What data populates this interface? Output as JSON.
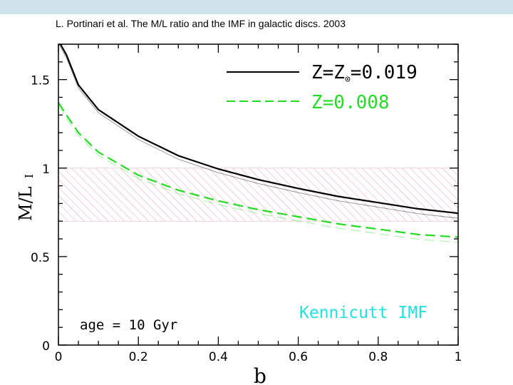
{
  "caption": "L. Portinari et al. The M/L ratio and the IMF in galactic discs. 2003",
  "colors": {
    "solar": "#000000",
    "low_z": "#22dd22",
    "imf_label": "#22e0e0",
    "band": "#e8a0b0",
    "header_band": "#cfe3ea"
  },
  "chart_data": {
    "type": "line",
    "title": "",
    "xlabel": "b",
    "ylabel_main": "M/L",
    "ylabel_sub": "I",
    "xlim": [
      0,
      1
    ],
    "ylim": [
      0,
      1.7
    ],
    "x_ticks": [
      0,
      0.2,
      0.4,
      0.6,
      0.8,
      1
    ],
    "x_tick_labels": [
      "0",
      "0.2",
      "0.4",
      "0.6",
      "0.8",
      "1"
    ],
    "y_ticks": [
      0,
      0.5,
      1,
      1.5
    ],
    "y_tick_labels": [
      "0",
      "0.5",
      "1",
      "1.5"
    ],
    "grid": false,
    "shaded_band": {
      "y_range": [
        0.7,
        1.0
      ],
      "style": "hatched"
    },
    "legend_position": "top-right",
    "series": [
      {
        "name": "Z=Z☉=0.019",
        "label_prefix": "Z=Z",
        "label_suffix": "=0.019",
        "style": "solid",
        "color": "#000000",
        "x": [
          0,
          0.02,
          0.05,
          0.1,
          0.2,
          0.3,
          0.4,
          0.5,
          0.6,
          0.7,
          0.8,
          0.9,
          1.0
        ],
        "values": [
          1.72,
          1.64,
          1.47,
          1.33,
          1.18,
          1.07,
          0.995,
          0.935,
          0.885,
          0.84,
          0.805,
          0.77,
          0.745
        ]
      },
      {
        "name": "Z=0.008",
        "label_prefix": "Z=0.008",
        "label_suffix": "",
        "style": "dashed",
        "color": "#22dd22",
        "x": [
          0,
          0.02,
          0.05,
          0.1,
          0.2,
          0.3,
          0.4,
          0.5,
          0.6,
          0.7,
          0.8,
          0.9,
          1.0
        ],
        "values": [
          1.37,
          1.3,
          1.2,
          1.09,
          0.96,
          0.875,
          0.815,
          0.765,
          0.725,
          0.685,
          0.655,
          0.625,
          0.61
        ]
      }
    ],
    "annotations": {
      "age": "age = 10 Gyr",
      "imf": "Kennicutt IMF"
    }
  }
}
